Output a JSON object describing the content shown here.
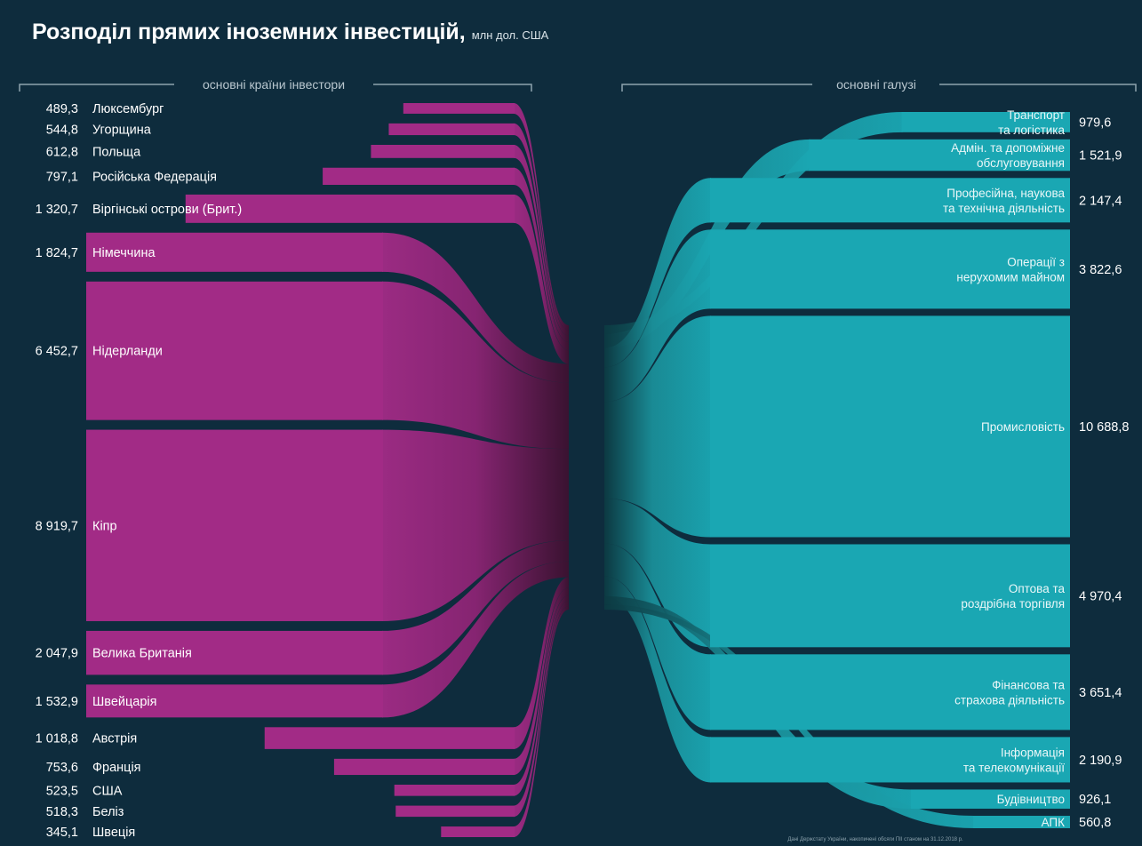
{
  "title": "Розподіл прямих іноземних інвестицій,",
  "unit": "млн дол. США",
  "note": "Дані Держстату України, накопичені обсяги ПІІ станом на 31.12.2018 р.",
  "colors": {
    "background": "#0e2c3d",
    "countries": "#a22b86",
    "industries": "#1aa7b3"
  },
  "chart_data": {
    "type": "sankey",
    "title": "Розподіл прямих іноземних інвестицій,",
    "unit": "млн дол. США",
    "left_header": "основні країни інвестори",
    "right_header": "основні галузі",
    "sources": [
      {
        "name": "Люксембург",
        "value": 489.3,
        "value_label": "489,3"
      },
      {
        "name": "Угорщина",
        "value": 544.8,
        "value_label": "544,8"
      },
      {
        "name": "Польща",
        "value": 612.8,
        "value_label": "612,8"
      },
      {
        "name": "Російська Федерація",
        "value": 797.1,
        "value_label": "797,1"
      },
      {
        "name": "Віргінські острови (Брит.)",
        "value": 1320.7,
        "value_label": "1 320,7"
      },
      {
        "name": "Німеччина",
        "value": 1824.7,
        "value_label": "1 824,7"
      },
      {
        "name": "Нідерланди",
        "value": 6452.7,
        "value_label": "6 452,7"
      },
      {
        "name": "Кіпр",
        "value": 8919.7,
        "value_label": "8 919,7"
      },
      {
        "name": "Велика Британія",
        "value": 2047.9,
        "value_label": "2 047,9"
      },
      {
        "name": "Швейцарія",
        "value": 1532.9,
        "value_label": "1 532,9"
      },
      {
        "name": "Австрія",
        "value": 1018.8,
        "value_label": "1 018,8"
      },
      {
        "name": "Франція",
        "value": 753.6,
        "value_label": "753,6"
      },
      {
        "name": "США",
        "value": 523.5,
        "value_label": "523,5"
      },
      {
        "name": "Беліз",
        "value": 518.3,
        "value_label": "518,3"
      },
      {
        "name": "Швеція",
        "value": 345.1,
        "value_label": "345,1"
      }
    ],
    "targets": [
      {
        "name": "Транспорт та логістика",
        "lines": [
          "Транспорт",
          "та логістика"
        ],
        "value": 979.6,
        "value_label": "979,6"
      },
      {
        "name": "Адмін. та допоміжне обслуговування",
        "lines": [
          "Адмін. та допоміжне",
          "обслуговування"
        ],
        "value": 1521.9,
        "value_label": "1 521,9"
      },
      {
        "name": "Професійна, наукова та технічна діяльність",
        "lines": [
          "Професійна, наукова",
          "та технічна діяльність"
        ],
        "value": 2147.4,
        "value_label": "2 147,4"
      },
      {
        "name": "Операції з нерухомим майном",
        "lines": [
          "Операції з",
          "нерухомим майном"
        ],
        "value": 3822.6,
        "value_label": "3 822,6"
      },
      {
        "name": "Промисловість",
        "lines": [
          "Промисловість"
        ],
        "value": 10688.8,
        "value_label": "10 688,8"
      },
      {
        "name": "Оптова та роздрібна торгівля",
        "lines": [
          "Оптова та",
          "роздрібна торгівля"
        ],
        "value": 4970.4,
        "value_label": "4 970,4"
      },
      {
        "name": "Фінансова та страхова діяльність",
        "lines": [
          "Фінансова та",
          "страхова діяльність"
        ],
        "value": 3651.4,
        "value_label": "3 651,4"
      },
      {
        "name": "Інформація та телекомунікації",
        "lines": [
          "Інформація",
          "та телекомунікації"
        ],
        "value": 2190.9,
        "value_label": "2 190,9"
      },
      {
        "name": "Будівництво",
        "lines": [
          "Будівництво"
        ],
        "value": 926.1,
        "value_label": "926,1"
      },
      {
        "name": "АПК",
        "lines": [
          "АПК"
        ],
        "value": 560.8,
        "value_label": "560,8"
      }
    ]
  }
}
